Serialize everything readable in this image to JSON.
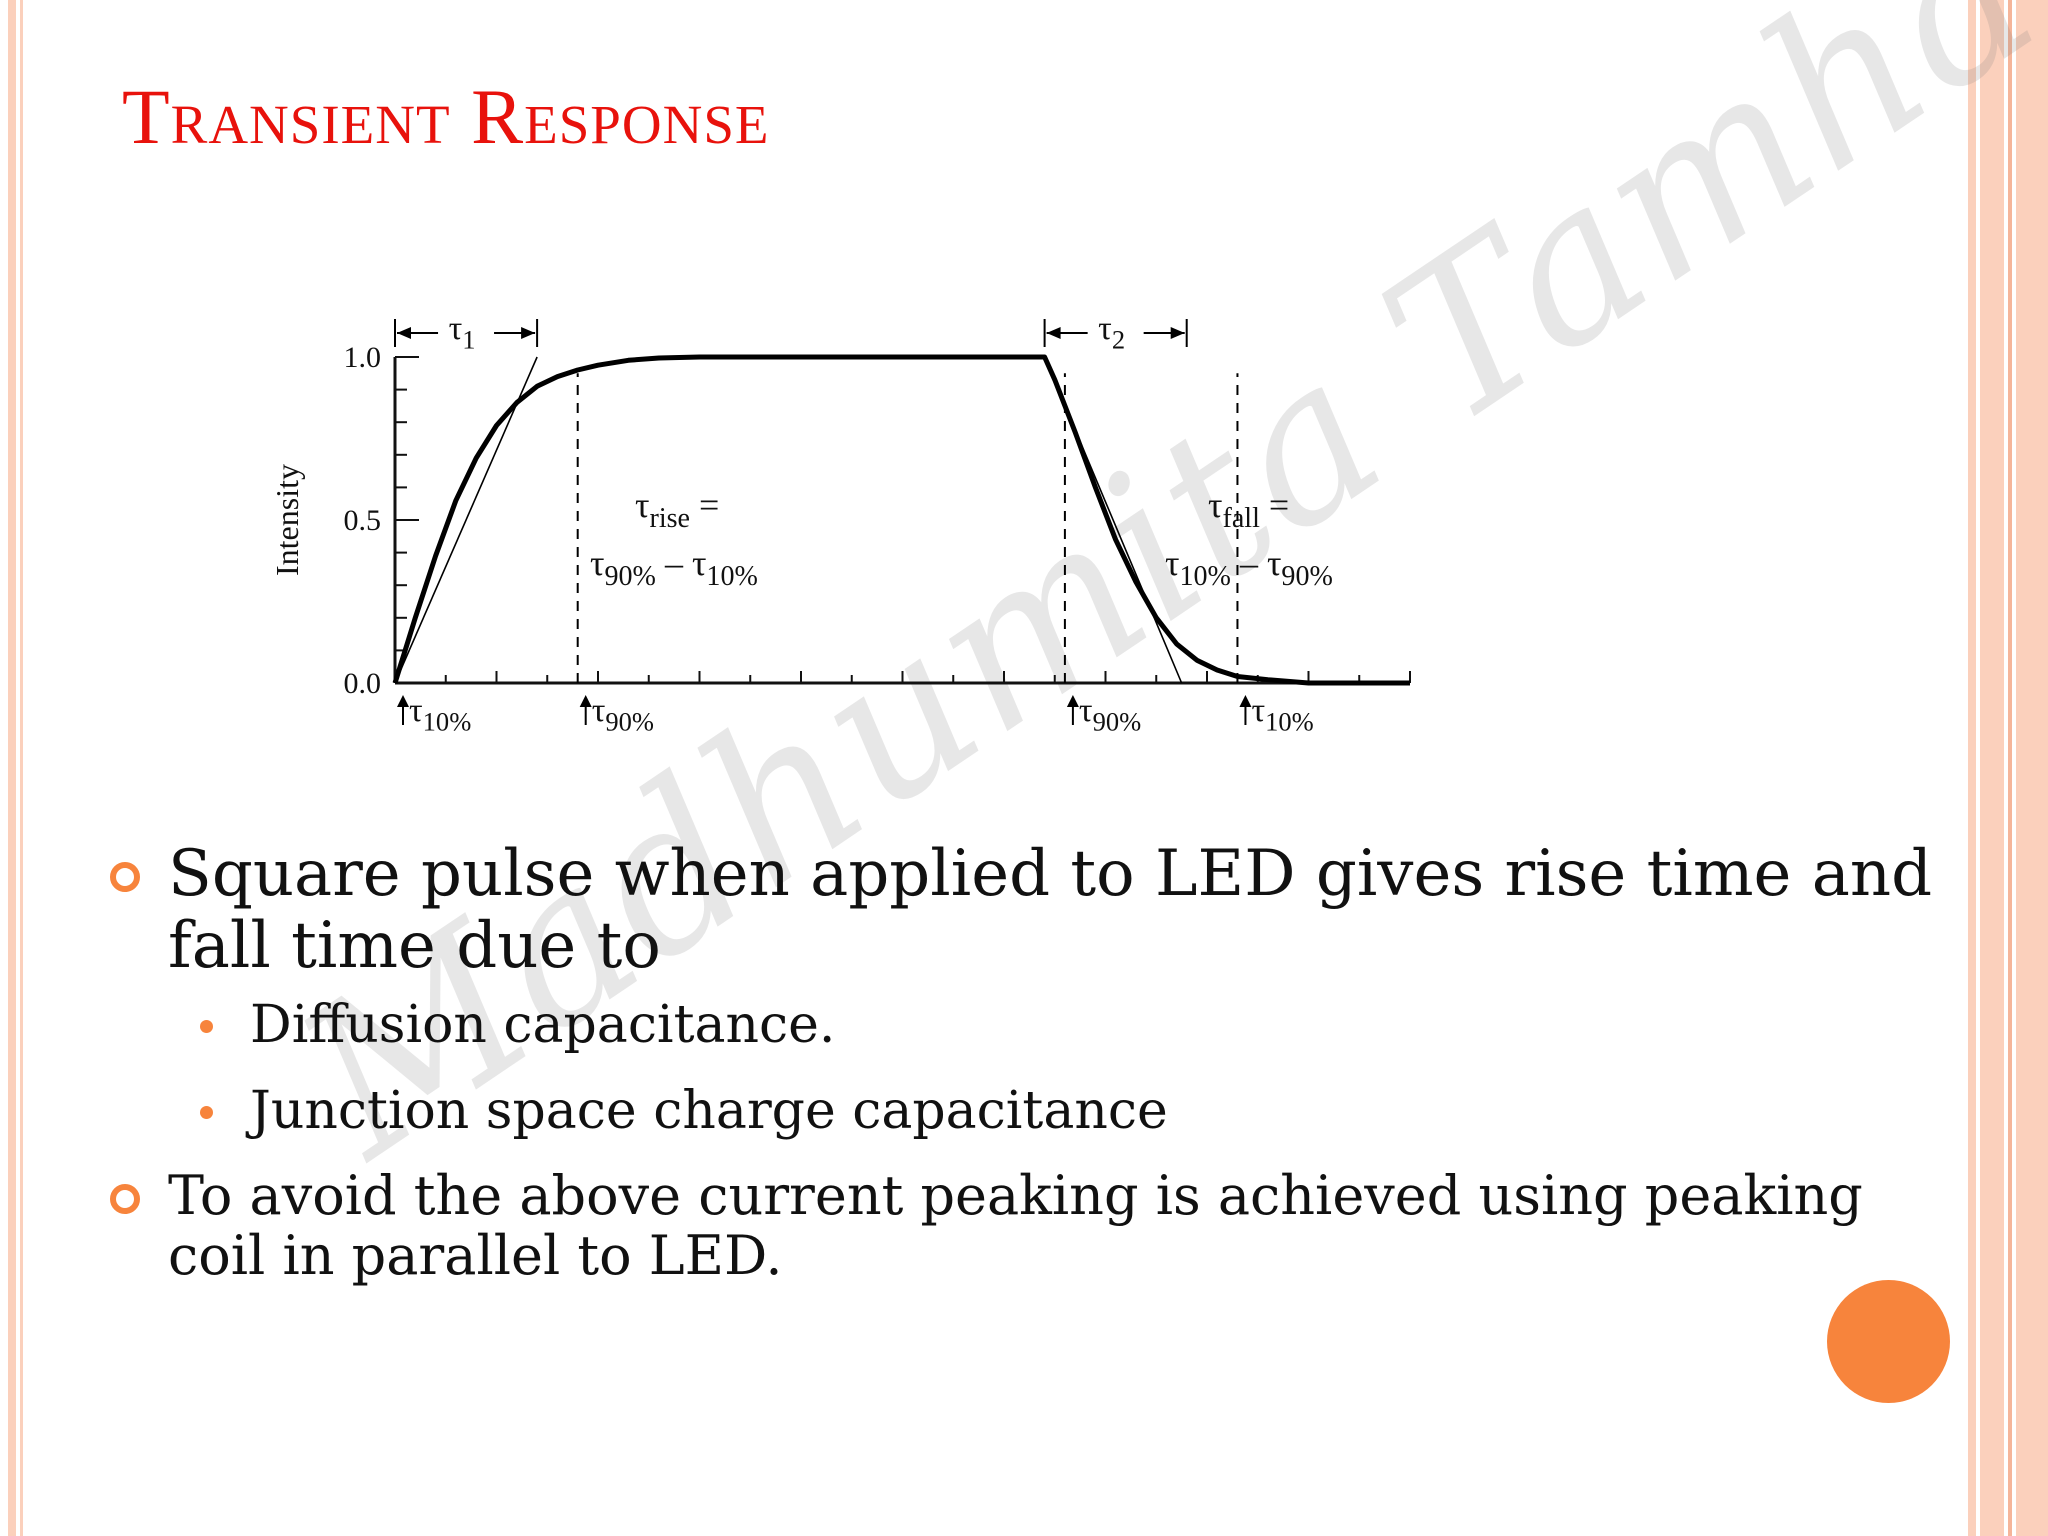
{
  "colors": {
    "title": "#e8120c",
    "accent": "#f7843c",
    "stripe_light": "#fbd0bc",
    "stripe_mid": "#f5b59a",
    "text": "#111111"
  },
  "slide": {
    "title": "Transient Response",
    "watermark": "Madhumita Tamhane",
    "bullets": [
      {
        "text": "Square pulse when applied to LED gives rise time and fall time due to",
        "subs": [
          "Diffusion capacitance.",
          "Junction space charge capacitance"
        ]
      },
      {
        "text": "To avoid the above current peaking is achieved using peaking coil in parallel to LED."
      }
    ]
  },
  "chart_data": {
    "type": "line",
    "ylabel": "Intensity",
    "xlabel": "",
    "y_ticks": [
      "0.0",
      "0.5",
      "1.0"
    ],
    "ylim": [
      0,
      1
    ],
    "xlim": [
      0,
      10
    ],
    "series": [
      {
        "x": [
          0,
          0.2,
          0.4,
          0.6,
          0.8,
          1.0,
          1.2,
          1.4,
          1.6,
          1.8,
          2.0,
          2.3,
          2.6,
          3.0,
          3.5,
          6.4,
          6.5,
          6.7,
          6.9,
          7.1,
          7.3,
          7.5,
          7.7,
          7.9,
          8.1,
          8.3,
          8.6,
          9.0,
          9.5,
          10.0
        ],
        "y": [
          0,
          0.2,
          0.39,
          0.56,
          0.69,
          0.79,
          0.86,
          0.91,
          0.94,
          0.96,
          0.975,
          0.99,
          0.997,
          1.0,
          1.0,
          1.0,
          0.93,
          0.77,
          0.6,
          0.44,
          0.31,
          0.2,
          0.12,
          0.07,
          0.04,
          0.02,
          0.01,
          0.0,
          0.0,
          0.0
        ]
      }
    ],
    "tangent_lines": [
      {
        "from": [
          0,
          0
        ],
        "to": [
          1.4,
          1.0
        ]
      },
      {
        "from": [
          6.4,
          1.0
        ],
        "to": [
          7.75,
          0.0
        ]
      }
    ],
    "annotations": {
      "tau1": {
        "symbol": "τ",
        "sub": "1"
      },
      "tau2": {
        "symbol": "τ",
        "sub": "2"
      },
      "rise_line1": {
        "symbol": "τ",
        "sub": "rise",
        "suffix": " ="
      },
      "rise_line2": {
        "a": "τ",
        "asub": "90%",
        "op": " – ",
        "b": "τ",
        "bsub": "10%"
      },
      "fall_line1": {
        "symbol": "τ",
        "sub": "fall",
        "suffix": " ="
      },
      "fall_line2": {
        "a": "τ",
        "asub": "10%",
        "op": " – ",
        "b": "τ",
        "bsub": "90%"
      },
      "markers": [
        {
          "x": 0.0,
          "symbol": "τ",
          "sub": "10%"
        },
        {
          "x": 1.8,
          "symbol": "τ",
          "sub": "90%"
        },
        {
          "x": 6.6,
          "symbol": "τ",
          "sub": "90%"
        },
        {
          "x": 8.3,
          "symbol": "τ",
          "sub": "10%"
        }
      ],
      "dashed_x": [
        1.8,
        6.6,
        8.3
      ]
    }
  }
}
